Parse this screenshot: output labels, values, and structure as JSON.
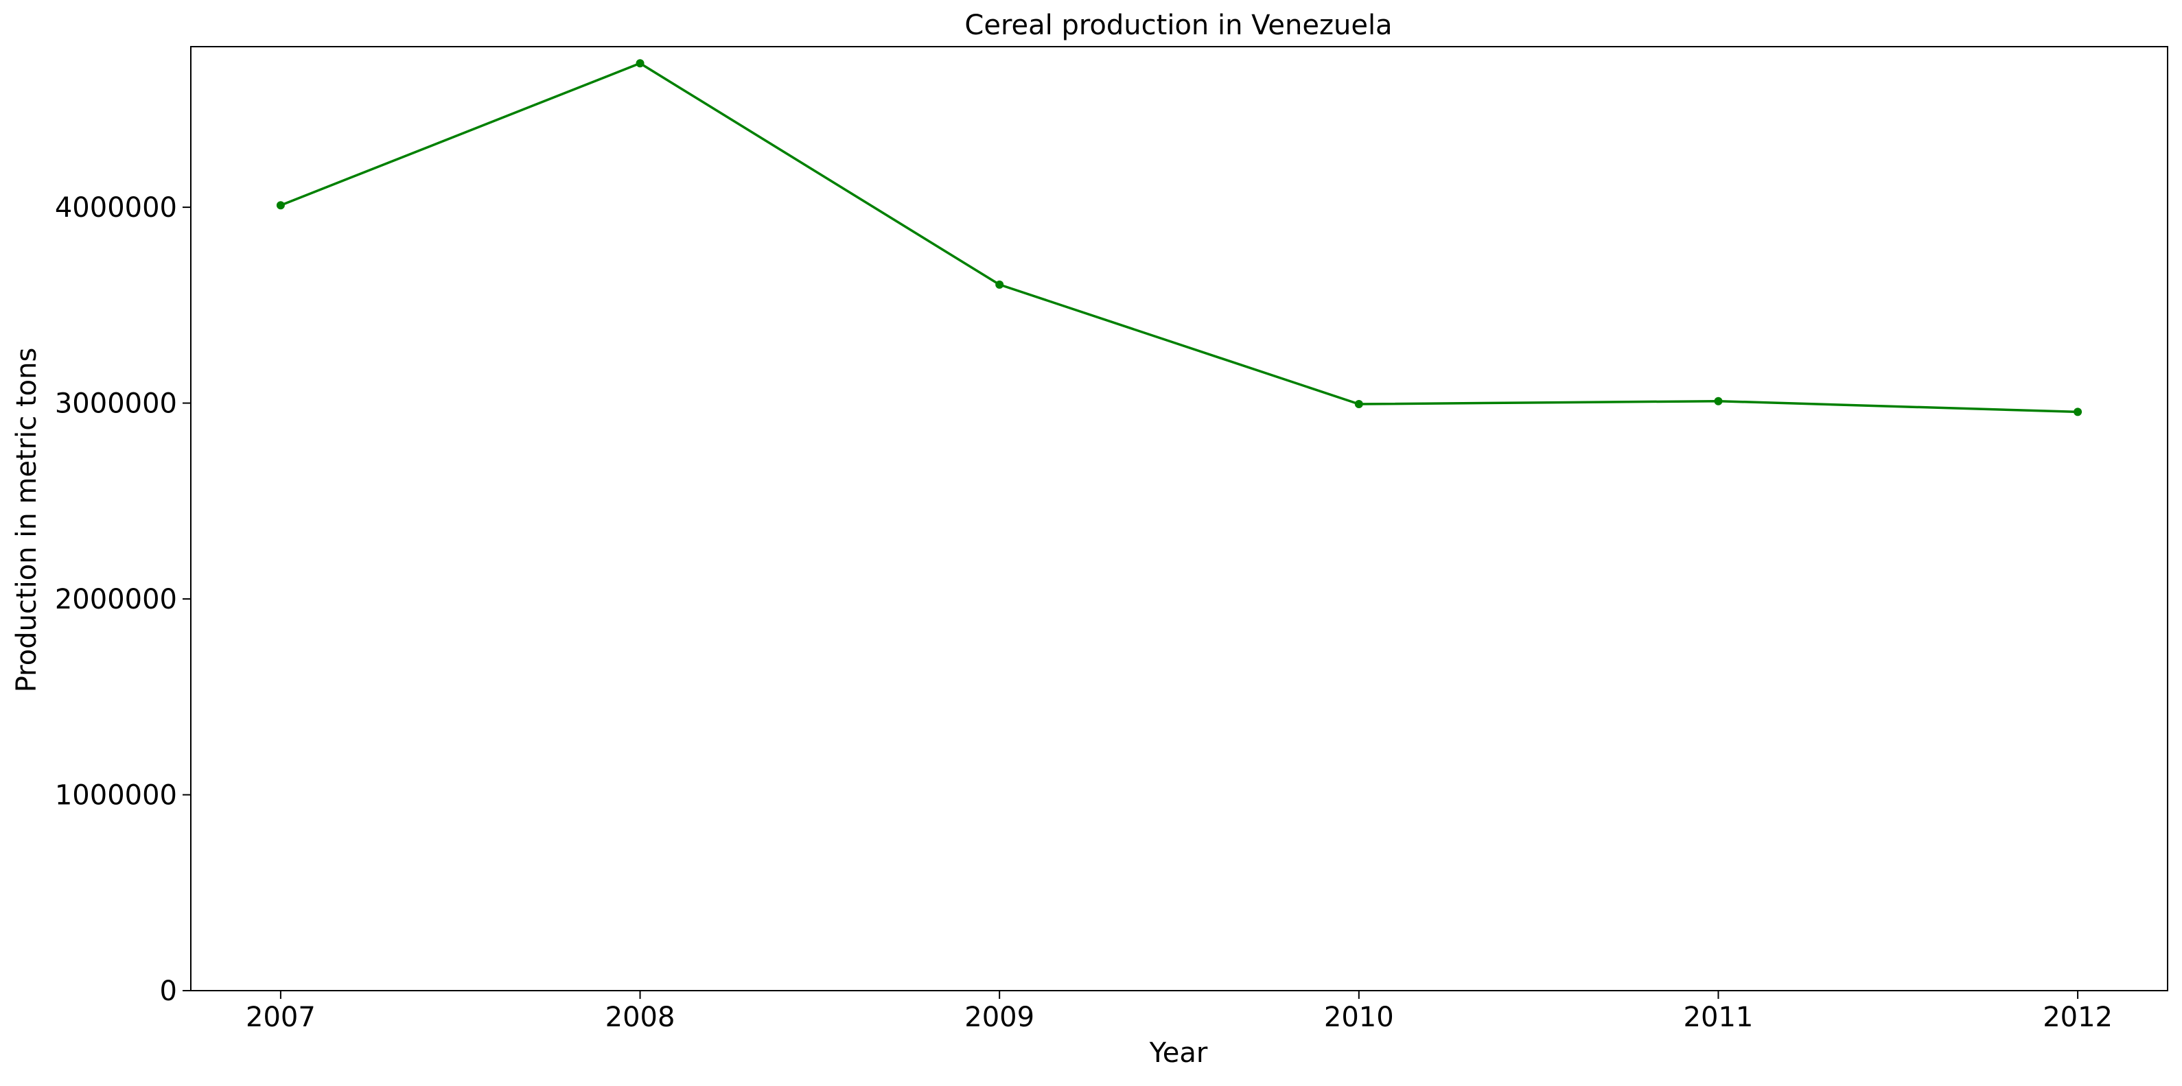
{
  "chart_data": {
    "type": "line",
    "title": "Cereal production in Venezuela",
    "xlabel": "Year",
    "ylabel": "Production in metric tons",
    "x": [
      2007,
      2008,
      2009,
      2010,
      2011,
      2012
    ],
    "x_tick_labels": [
      "2007",
      "2008",
      "2009",
      "2010",
      "2011",
      "2012"
    ],
    "xlim": [
      2006.75,
      2012.25
    ],
    "ylim": [
      0,
      4820000
    ],
    "y_ticks": [
      0,
      1000000,
      2000000,
      3000000,
      4000000
    ],
    "y_tick_labels": [
      "0",
      "1000000",
      "2000000",
      "3000000",
      "4000000"
    ],
    "grid": false,
    "series": [
      {
        "color": "#008000",
        "marker": "circle",
        "values": [
          4010000,
          4735000,
          3605000,
          2995000,
          3010000,
          2955000
        ]
      }
    ]
  }
}
